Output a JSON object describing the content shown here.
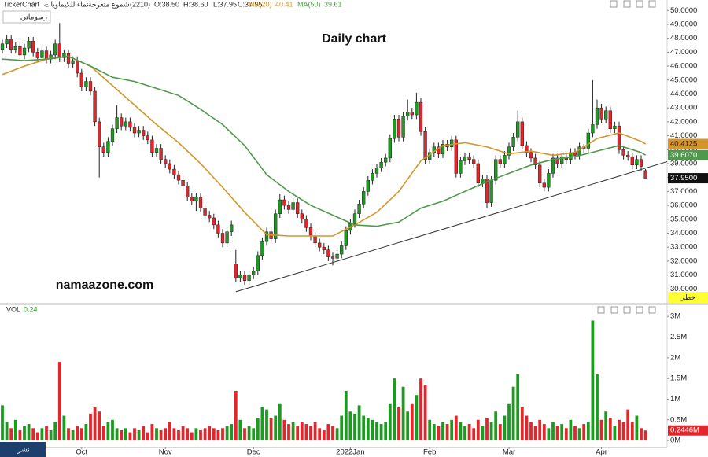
{
  "header": {
    "app": "TickerChart",
    "symbol": "نماء للكيماويات",
    "chart_kind": "شموع متعرجة",
    "code": "(2210)",
    "open": "O:38.50",
    "high": "H:38.60",
    "low": "L:37.95",
    "close": "C:37.95",
    "drawings_button": "رسوماتي",
    "line_button": "خطي",
    "share_button": "نشر"
  },
  "chart_data": {
    "type": "candlestick",
    "title": "Daily chart",
    "annotation": "namaazone.com",
    "colors": {
      "up": "#1e9a22",
      "down": "#e2262b"
    },
    "xticks": [
      {
        "value": 18,
        "label": "Oct"
      },
      {
        "value": 37,
        "label": "Nov"
      },
      {
        "value": 57,
        "label": "Dec"
      },
      {
        "value": 79,
        "label": "2022Jan"
      },
      {
        "value": 97,
        "label": "Feb"
      },
      {
        "value": 115,
        "label": "Mar"
      },
      {
        "value": 136,
        "label": "Apr"
      }
    ],
    "ylim": [
      29,
      50.75
    ],
    "yticks": [
      {
        "value": 30,
        "label": "30.0000"
      },
      {
        "value": 31,
        "label": "31.0000"
      },
      {
        "value": 32,
        "label": "32.0000"
      },
      {
        "value": 33,
        "label": "33.0000"
      },
      {
        "value": 34,
        "label": "34.0000"
      },
      {
        "value": 35,
        "label": "35.0000"
      },
      {
        "value": 36,
        "label": "36.0000"
      },
      {
        "value": 37,
        "label": "37.0000"
      },
      {
        "value": 38,
        "label": "38.0000"
      },
      {
        "value": 39,
        "label": "39.0000"
      },
      {
        "value": 40,
        "label": "40.0000"
      },
      {
        "value": 41,
        "label": "41.0000"
      },
      {
        "value": 42,
        "label": "42.0000"
      },
      {
        "value": 43,
        "label": "43.0000"
      },
      {
        "value": 44,
        "label": "44.0000"
      },
      {
        "value": 45,
        "label": "45.0000"
      },
      {
        "value": 46,
        "label": "46.0000"
      },
      {
        "value": 47,
        "label": "47.0000"
      },
      {
        "value": 48,
        "label": "48.0000"
      },
      {
        "value": 49,
        "label": "49.0000"
      },
      {
        "value": 50,
        "label": "50.0000"
      }
    ],
    "open": [
      47.2,
      47.6,
      47.9,
      47.2,
      47.4,
      46.8,
      47.3,
      47.8,
      47.0,
      46.6,
      47.1,
      46.5,
      46.8,
      47.6,
      46.6,
      46.9,
      46.2,
      46.4,
      45.5,
      44.5,
      44.9,
      44.2,
      42.0,
      40.2,
      39.8,
      40.6,
      41.5,
      42.3,
      41.7,
      42.0,
      41.6,
      41.2,
      41.4,
      41.0,
      40.7,
      39.8,
      40.1,
      39.3,
      39.0,
      38.6,
      38.2,
      37.8,
      37.4,
      36.6,
      36.3,
      36.6,
      35.8,
      35.3,
      35.1,
      34.6,
      34.0,
      33.3,
      34.1,
      31.8,
      30.8,
      31.0,
      30.6,
      31.0,
      31.3,
      32.4,
      33.4,
      34.1,
      33.6,
      35.4,
      36.4,
      36.0,
      35.7,
      36.2,
      35.4,
      35.0,
      34.4,
      33.8,
      33.3,
      33.0,
      32.8,
      32.3,
      32.2,
      32.5,
      33.1,
      34.2,
      34.7,
      35.4,
      36.1,
      37.0,
      37.8,
      38.3,
      38.7,
      39.1,
      39.4,
      40.8,
      42.2,
      40.9,
      42.4,
      42.7,
      42.5,
      43.4,
      41.3,
      39.3,
      39.8,
      40.2,
      39.7,
      40.4,
      40.2,
      40.7,
      38.3,
      39.2,
      39.5,
      39.3,
      39.0,
      37.6,
      37.9,
      36.2,
      37.8,
      39.3,
      39.0,
      39.6,
      40.2,
      40.9,
      42.0,
      40.3,
      39.8,
      39.4,
      38.9,
      37.6,
      37.3,
      38.3,
      39.4,
      39.0,
      39.5,
      39.3,
      39.8,
      39.6,
      40.2,
      40.1,
      41.2,
      41.8,
      43.0,
      42.2,
      42.8,
      41.5,
      41.7,
      40.0,
      39.6,
      39.5,
      38.9,
      39.3,
      38.5
    ],
    "high": [
      47.9,
      48.2,
      48.2,
      47.7,
      47.7,
      47.6,
      48.1,
      48.1,
      47.3,
      47.4,
      47.4,
      47.1,
      47.9,
      49.1,
      47.2,
      47.2,
      46.7,
      46.7,
      45.8,
      45.2,
      45.2,
      44.5,
      42.3,
      40.5,
      40.9,
      41.8,
      43.2,
      42.6,
      42.3,
      42.3,
      41.9,
      41.7,
      41.7,
      41.3,
      41.0,
      40.4,
      40.4,
      39.6,
      39.3,
      38.9,
      38.5,
      38.1,
      37.7,
      36.9,
      36.9,
      36.9,
      36.1,
      35.6,
      35.4,
      34.9,
      34.3,
      34.4,
      34.9,
      32.8,
      31.3,
      31.3,
      31.3,
      31.6,
      32.7,
      33.7,
      34.4,
      34.4,
      35.7,
      36.8,
      36.7,
      36.3,
      36.5,
      36.5,
      35.7,
      35.3,
      34.7,
      34.1,
      33.6,
      33.3,
      33.1,
      32.6,
      32.8,
      33.4,
      34.5,
      35.0,
      35.7,
      36.4,
      37.3,
      38.1,
      38.6,
      39.0,
      39.4,
      39.7,
      41.1,
      42.5,
      42.5,
      42.7,
      43.6,
      43.0,
      44.1,
      43.7,
      41.6,
      40.1,
      40.5,
      40.5,
      40.7,
      40.7,
      41.0,
      41.0,
      39.5,
      39.8,
      39.8,
      39.6,
      39.3,
      38.2,
      38.2,
      38.1,
      39.6,
      39.6,
      39.9,
      40.5,
      41.2,
      42.8,
      42.3,
      40.6,
      40.1,
      39.7,
      39.2,
      37.9,
      38.6,
      39.7,
      39.7,
      39.8,
      39.8,
      40.1,
      40.1,
      40.5,
      40.4,
      41.5,
      45.0,
      43.6,
      43.3,
      43.1,
      43.1,
      42.0,
      42.0,
      40.3,
      39.9,
      39.8,
      39.6,
      39.6,
      38.6
    ],
    "low": [
      46.9,
      47.3,
      46.9,
      46.9,
      46.5,
      46.5,
      47.0,
      46.7,
      46.3,
      46.3,
      46.2,
      46.2,
      46.5,
      46.3,
      46.3,
      45.9,
      45.9,
      45.2,
      44.2,
      44.2,
      43.9,
      41.7,
      38.0,
      39.5,
      39.5,
      40.3,
      41.2,
      41.4,
      41.4,
      41.3,
      40.9,
      40.9,
      40.7,
      40.4,
      39.5,
      39.5,
      39.0,
      38.7,
      38.3,
      37.9,
      37.5,
      37.1,
      36.3,
      36.0,
      35.6,
      35.5,
      35.0,
      34.8,
      34.3,
      33.7,
      33.0,
      33.0,
      33.8,
      30.5,
      30.5,
      30.3,
      30.3,
      30.7,
      31.0,
      32.1,
      33.1,
      33.3,
      33.3,
      35.1,
      35.7,
      35.4,
      35.4,
      35.1,
      34.7,
      34.1,
      33.5,
      33.0,
      32.7,
      32.5,
      32.0,
      31.7,
      31.9,
      32.2,
      32.8,
      33.9,
      34.4,
      35.1,
      35.8,
      36.7,
      37.5,
      38.0,
      38.4,
      38.8,
      39.1,
      40.5,
      40.6,
      40.6,
      42.1,
      42.2,
      42.2,
      41.0,
      39.0,
      39.0,
      39.5,
      39.4,
      39.4,
      39.9,
      39.9,
      38.0,
      38.0,
      38.9,
      39.0,
      38.7,
      37.3,
      37.3,
      35.8,
      35.9,
      37.5,
      38.7,
      38.7,
      39.3,
      39.9,
      40.6,
      40.0,
      39.5,
      39.1,
      38.6,
      37.3,
      37.0,
      37.0,
      38.0,
      38.7,
      38.7,
      39.0,
      39.0,
      39.3,
      39.3,
      39.8,
      39.8,
      40.9,
      41.5,
      41.9,
      41.9,
      41.2,
      41.2,
      39.7,
      39.3,
      39.2,
      38.6,
      38.6,
      38.5,
      37.95
    ],
    "close": [
      47.6,
      47.9,
      47.2,
      47.4,
      46.8,
      47.3,
      47.8,
      47.0,
      46.6,
      47.1,
      46.5,
      46.8,
      47.6,
      46.6,
      46.9,
      46.2,
      46.4,
      45.5,
      44.5,
      44.9,
      44.2,
      42.0,
      40.2,
      39.8,
      40.6,
      41.5,
      42.3,
      41.7,
      42.0,
      41.6,
      41.2,
      41.4,
      41.0,
      40.7,
      39.8,
      40.1,
      39.3,
      39.0,
      38.6,
      38.2,
      37.8,
      37.4,
      36.6,
      36.3,
      36.6,
      35.8,
      35.3,
      35.1,
      34.6,
      34.0,
      33.3,
      34.1,
      34.6,
      30.8,
      31.0,
      30.6,
      31.0,
      31.3,
      32.4,
      33.4,
      34.1,
      33.6,
      35.4,
      36.4,
      36.0,
      35.7,
      36.2,
      35.4,
      35.0,
      34.4,
      33.8,
      33.3,
      33.0,
      32.8,
      32.3,
      32.2,
      32.5,
      33.1,
      34.2,
      34.7,
      35.4,
      36.1,
      37.0,
      37.8,
      38.3,
      38.7,
      39.1,
      39.4,
      40.8,
      42.2,
      40.9,
      42.4,
      42.7,
      42.5,
      43.4,
      41.3,
      39.3,
      39.8,
      40.2,
      39.7,
      40.4,
      40.2,
      40.7,
      38.3,
      39.2,
      39.5,
      39.3,
      39.0,
      37.6,
      37.9,
      36.2,
      37.8,
      39.3,
      39.0,
      39.6,
      40.2,
      40.9,
      42.0,
      40.3,
      39.8,
      39.4,
      38.9,
      37.6,
      37.3,
      38.3,
      39.4,
      39.0,
      39.5,
      39.3,
      39.8,
      39.6,
      40.2,
      40.1,
      41.2,
      41.8,
      43.0,
      42.2,
      42.8,
      41.5,
      41.7,
      40.0,
      39.6,
      39.5,
      38.9,
      39.3,
      38.8,
      37.95
    ],
    "last_label": {
      "value": 37.95,
      "label": "37.9500"
    },
    "ma": [
      {
        "name": "MA(20)",
        "color": "#d4952a",
        "last": 40.41,
        "axis_label": {
          "value": 40.4125,
          "label": "40.4125"
        },
        "x": [
          0,
          5,
          10,
          15,
          20,
          25,
          30,
          35,
          40,
          45,
          50,
          55,
          60,
          65,
          70,
          75,
          80,
          85,
          90,
          95,
          100,
          105,
          110,
          115,
          120,
          125,
          130,
          135,
          140,
          145,
          146
        ],
        "values": [
          45.4,
          46.0,
          46.5,
          46.7,
          46.0,
          44.6,
          43.2,
          41.8,
          40.5,
          39.0,
          37.3,
          35.5,
          33.9,
          33.8,
          33.8,
          33.8,
          34.6,
          35.5,
          37.0,
          39.2,
          40.3,
          40.5,
          40.2,
          39.7,
          39.9,
          39.6,
          39.8,
          40.8,
          41.2,
          40.6,
          40.41
        ]
      },
      {
        "name": "MA(50)",
        "color": "#4f9a4a",
        "last": 39.61,
        "axis_label": {
          "value": 39.607,
          "label": "39.6070"
        },
        "x": [
          0,
          5,
          10,
          15,
          20,
          25,
          30,
          35,
          40,
          45,
          50,
          55,
          60,
          65,
          70,
          75,
          80,
          85,
          90,
          95,
          100,
          105,
          110,
          115,
          120,
          125,
          130,
          135,
          140,
          145,
          146
        ],
        "values": [
          46.5,
          46.4,
          46.5,
          46.7,
          46.0,
          45.2,
          44.9,
          44.4,
          43.9,
          42.9,
          41.8,
          40.3,
          38.2,
          37.0,
          36.0,
          35.3,
          34.6,
          34.5,
          34.8,
          35.8,
          36.3,
          37.0,
          37.7,
          38.3,
          38.9,
          39.3,
          39.5,
          39.9,
          40.3,
          39.8,
          39.61
        ]
      }
    ],
    "trendline": {
      "x": [
        53,
        151
      ],
      "values": [
        29.8,
        39.15
      ]
    },
    "volume": {
      "name": "VOL",
      "header_value": 0.24,
      "ylim": [
        -0.15,
        3.27
      ],
      "yticks": [
        {
          "value": 0,
          "label": "0M"
        },
        {
          "value": 0.5,
          "label": "0.5M"
        },
        {
          "value": 1,
          "label": "1M"
        },
        {
          "value": 1.5,
          "label": "1.5M"
        },
        {
          "value": 2,
          "label": "2M"
        },
        {
          "value": 2.5,
          "label": "2.5M"
        },
        {
          "value": 3,
          "label": "3M"
        }
      ],
      "last_label": {
        "value": 0.2446,
        "label": "0.2446M"
      },
      "values": [
        0.85,
        0.45,
        0.3,
        0.5,
        0.25,
        0.35,
        0.4,
        0.3,
        0.2,
        0.3,
        0.35,
        0.25,
        0.45,
        1.9,
        0.6,
        0.3,
        0.25,
        0.35,
        0.3,
        0.4,
        0.65,
        0.8,
        0.7,
        0.35,
        0.45,
        0.5,
        0.3,
        0.25,
        0.3,
        0.2,
        0.3,
        0.25,
        0.35,
        0.2,
        0.4,
        0.3,
        0.25,
        0.3,
        0.45,
        0.3,
        0.25,
        0.35,
        0.3,
        0.2,
        0.3,
        0.25,
        0.3,
        0.35,
        0.3,
        0.25,
        0.3,
        0.35,
        0.4,
        1.2,
        0.5,
        0.3,
        0.35,
        0.3,
        0.55,
        0.8,
        0.75,
        0.55,
        0.6,
        0.9,
        0.5,
        0.4,
        0.45,
        0.35,
        0.45,
        0.4,
        0.35,
        0.45,
        0.3,
        0.25,
        0.4,
        0.35,
        0.3,
        0.6,
        1.2,
        0.7,
        0.65,
        0.85,
        0.6,
        0.55,
        0.5,
        0.45,
        0.4,
        0.45,
        0.9,
        1.5,
        0.8,
        1.3,
        0.7,
        0.9,
        1.1,
        1.5,
        1.35,
        0.5,
        0.4,
        0.35,
        0.45,
        0.4,
        0.5,
        0.6,
        0.45,
        0.35,
        0.4,
        0.3,
        0.5,
        0.35,
        0.55,
        0.45,
        0.7,
        0.4,
        0.6,
        0.9,
        1.3,
        1.6,
        0.8,
        0.6,
        0.45,
        0.35,
        0.5,
        0.4,
        0.3,
        0.45,
        0.35,
        0.4,
        0.3,
        0.5,
        0.35,
        0.3,
        0.4,
        0.45,
        2.9,
        1.6,
        0.5,
        0.7,
        0.55,
        0.35,
        0.5,
        0.45,
        0.75,
        0.45,
        0.6,
        0.3,
        0.2446
      ]
    }
  }
}
